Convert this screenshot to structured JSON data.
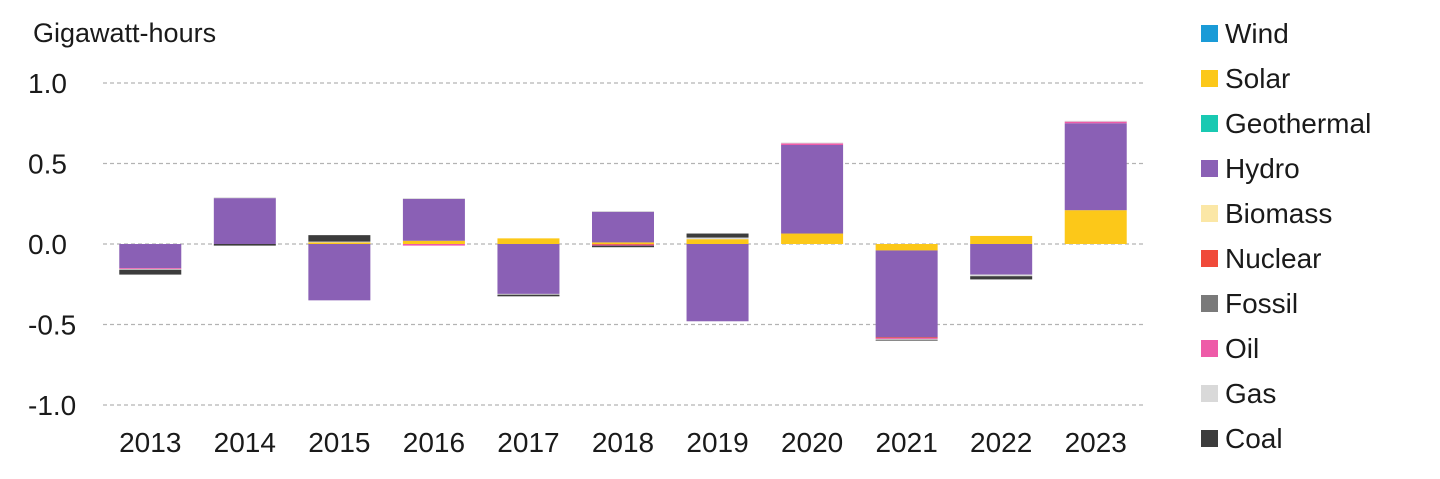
{
  "chart_data": {
    "type": "bar",
    "stacked": true,
    "ylabel": "Gigawatt-hours",
    "ylim": [
      -1.0,
      1.0
    ],
    "yticks": [
      1.0,
      0.5,
      0.0,
      -0.5,
      -1.0
    ],
    "ytick_labels": [
      "1.0",
      "0.5",
      "0.0",
      "-0.5",
      "-1.0"
    ],
    "grid": true,
    "legend_position": "right",
    "categories": [
      "2013",
      "2014",
      "2015",
      "2016",
      "2017",
      "2018",
      "2019",
      "2020",
      "2021",
      "2022",
      "2023"
    ],
    "series": [
      {
        "name": "Wind",
        "color": "#1a9bd7",
        "values": [
          0,
          0,
          0,
          0,
          0,
          0,
          0,
          0,
          0,
          0,
          0
        ]
      },
      {
        "name": "Solar",
        "color": "#fcc819",
        "values": [
          0,
          0,
          0.01,
          0.02,
          0.035,
          0.01,
          0.03,
          0.065,
          -0.04,
          0.05,
          0.21
        ]
      },
      {
        "name": "Geothermal",
        "color": "#19c9b2",
        "values": [
          0,
          0,
          0,
          0,
          0,
          0,
          0,
          0,
          0,
          0,
          0
        ]
      },
      {
        "name": "Hydro",
        "color": "#8a60b5",
        "values": [
          -0.15,
          0.285,
          -0.35,
          0.26,
          -0.31,
          0.19,
          -0.48,
          0.55,
          -0.54,
          -0.19,
          0.54
        ]
      },
      {
        "name": "Biomass",
        "color": "#fbe7a6",
        "values": [
          0,
          0,
          0,
          0,
          0,
          0,
          0,
          0,
          0,
          0,
          0
        ]
      },
      {
        "name": "Nuclear",
        "color": "#f04a3a",
        "values": [
          0,
          0,
          0,
          0,
          0,
          -0.005,
          0,
          0,
          -0.005,
          0,
          0
        ]
      },
      {
        "name": "Fossil",
        "color": "#7a7a7a",
        "values": [
          0,
          0,
          0,
          0,
          0,
          0,
          0,
          0,
          0,
          0,
          0
        ]
      },
      {
        "name": "Oil",
        "color": "#ee5ba8",
        "values": [
          -0.005,
          0,
          0,
          -0.01,
          0,
          -0.005,
          0,
          0.01,
          -0.005,
          0,
          0.01
        ]
      },
      {
        "name": "Gas",
        "color": "#d9d9d9",
        "values": [
          -0.005,
          0.005,
          0.005,
          0.005,
          -0.005,
          0.005,
          0.01,
          0.005,
          -0.005,
          -0.01,
          0.005
        ]
      },
      {
        "name": "Coal",
        "color": "#3c3c3c",
        "values": [
          -0.03,
          -0.01,
          0.04,
          0,
          -0.01,
          -0.01,
          0.025,
          0,
          -0.005,
          -0.02,
          0
        ]
      }
    ]
  }
}
